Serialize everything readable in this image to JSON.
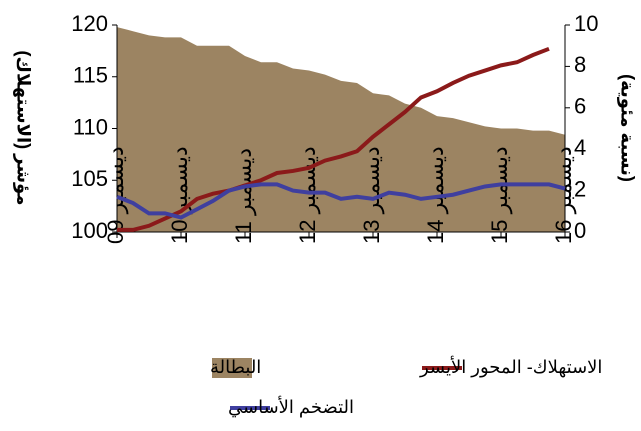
{
  "chart_data": {
    "type": "combo",
    "categories": [
      "ديسمبر 09",
      null,
      null,
      null,
      "ديسمبر 10",
      null,
      null,
      null,
      "ديسمبر 11",
      null,
      null,
      null,
      "ديسمبر 12",
      null,
      null,
      null,
      "ديسمبر 13",
      null,
      null,
      null,
      "ديسمبر 14",
      null,
      null,
      null,
      "ديسمبر 15",
      null,
      null,
      null,
      "ديسمبر 16"
    ],
    "ylabel": "مؤشر (الاستهلاك)",
    "y2label": "(نسبة مئوية)",
    "ylim": [
      100,
      120
    ],
    "yticks": [
      100,
      105,
      110,
      115,
      120
    ],
    "y2lim": [
      0,
      10
    ],
    "y2ticks": [
      0,
      2,
      4,
      6,
      8,
      10
    ],
    "legend": "bottom",
    "series": [
      {
        "name": "البطالة",
        "kind": "area",
        "axis": "y2",
        "color": "#9c8462",
        "values": [
          9.9,
          9.7,
          9.5,
          9.4,
          9.4,
          9.0,
          9.0,
          9.0,
          8.5,
          8.2,
          8.2,
          7.9,
          7.8,
          7.6,
          7.3,
          7.2,
          6.7,
          6.6,
          6.2,
          6.0,
          5.6,
          5.5,
          5.3,
          5.1,
          5.0,
          5.0,
          4.9,
          4.9,
          4.7
        ]
      },
      {
        "name": "الاستهلاك- المحور الأيسر",
        "kind": "line",
        "axis": "y",
        "color": "#8b1a1a",
        "values": [
          100.2,
          100.2,
          100.6,
          101.3,
          102.0,
          103.2,
          103.7,
          104.0,
          104.5,
          105.0,
          105.7,
          105.9,
          106.2,
          106.9,
          107.3,
          107.8,
          109.2,
          110.4,
          111.6,
          113.0,
          113.6,
          114.4,
          115.1,
          115.6,
          116.1,
          116.4,
          117.1,
          117.7,
          null
        ]
      },
      {
        "name": "التضخم الأساسي",
        "kind": "line",
        "axis": "y2",
        "color": "#3f3f9f",
        "values": [
          1.7,
          1.4,
          0.9,
          0.9,
          0.7,
          1.1,
          1.5,
          2.0,
          2.2,
          2.3,
          2.3,
          2.0,
          1.9,
          1.9,
          1.6,
          1.7,
          1.6,
          1.9,
          1.8,
          1.6,
          1.7,
          1.8,
          2.0,
          2.2,
          2.3,
          2.3,
          2.3,
          2.3,
          2.1
        ]
      }
    ]
  }
}
